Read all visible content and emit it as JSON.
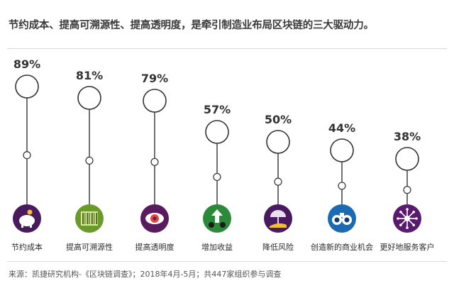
{
  "title": "节约成本、提高可溯源性、提高透明度，是牵引制造业布局区块链的三大驱动力。",
  "source": "来源：凯捷研究机构-《区块链调查》；2018年4月-5月；共447家组织参与调查",
  "chart_data": {
    "type": "lollipop",
    "unit": "%",
    "categories": [
      "节约成本",
      "提高可溯源性",
      "提高透明度",
      "增加收益",
      "降低风险",
      "创造新的商业机会",
      "更好地服务客户"
    ],
    "values": [
      89,
      81,
      79,
      57,
      50,
      44,
      38
    ],
    "value_labels": [
      "89%",
      "81%",
      "79%",
      "57%",
      "50%",
      "44%",
      "38%"
    ],
    "icons": [
      "piggy-bank-icon",
      "barcode-icon",
      "eye-icon",
      "growth-arrow-icon",
      "umbrella-hand-icon",
      "binoculars-icon",
      "network-burst-icon"
    ],
    "icon_colors": [
      "#4a1a5e",
      "#6a9a2a",
      "#5a1a5e",
      "#2a8a3a",
      "#4a1a5e",
      "#1a6ab4",
      "#5a1a6e"
    ]
  }
}
